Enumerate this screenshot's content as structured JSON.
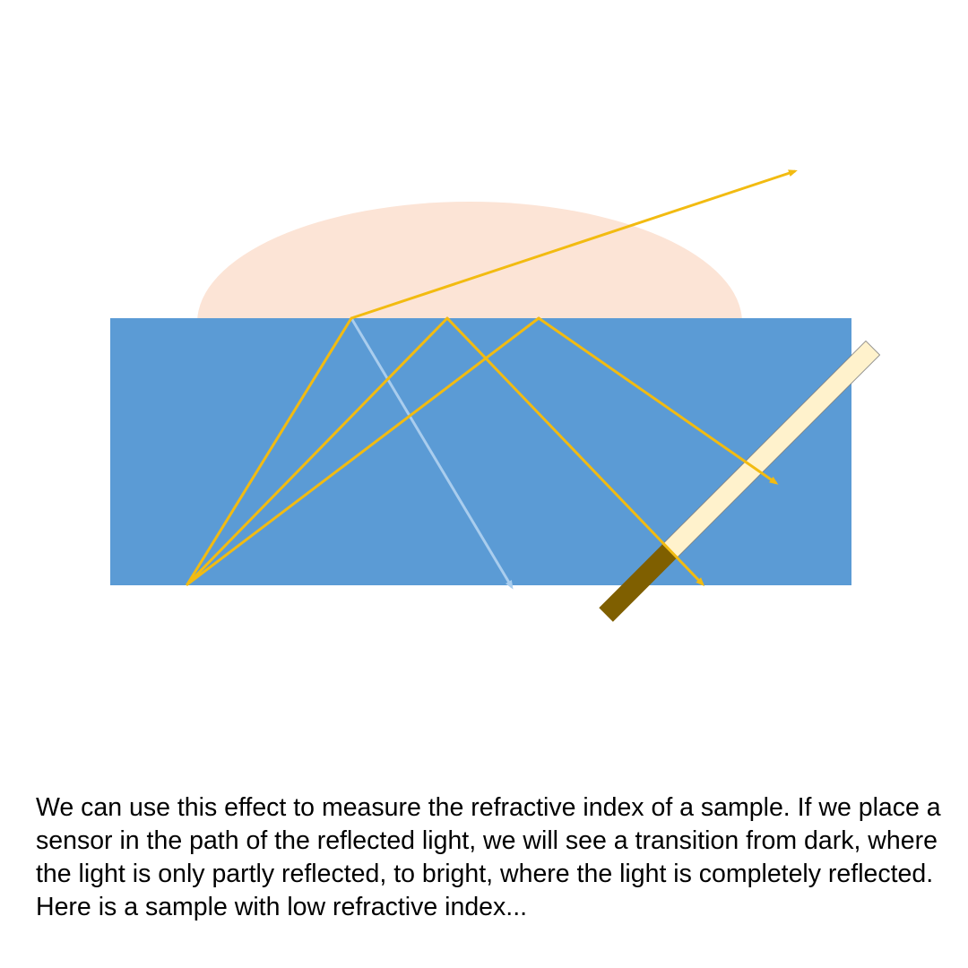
{
  "slide": {
    "caption": "We can use this effect to measure the refractive index of a sample. If we place a sensor in the path of the reflected light, we will see a transition from dark, where the light is only partly reflected, to bright, where the light is completely reflected. Here is a sample with low refractive index..."
  },
  "colors": {
    "background": "#ffffff",
    "sample": "#fce4d6",
    "prism": "#5b9bd5",
    "light_ray": "#f2bb11",
    "transmitted_ray": "#a9cdee",
    "sensor_bright": "#fff2cc",
    "sensor_dark": "#7f5f00",
    "caption_text": "#000000"
  }
}
